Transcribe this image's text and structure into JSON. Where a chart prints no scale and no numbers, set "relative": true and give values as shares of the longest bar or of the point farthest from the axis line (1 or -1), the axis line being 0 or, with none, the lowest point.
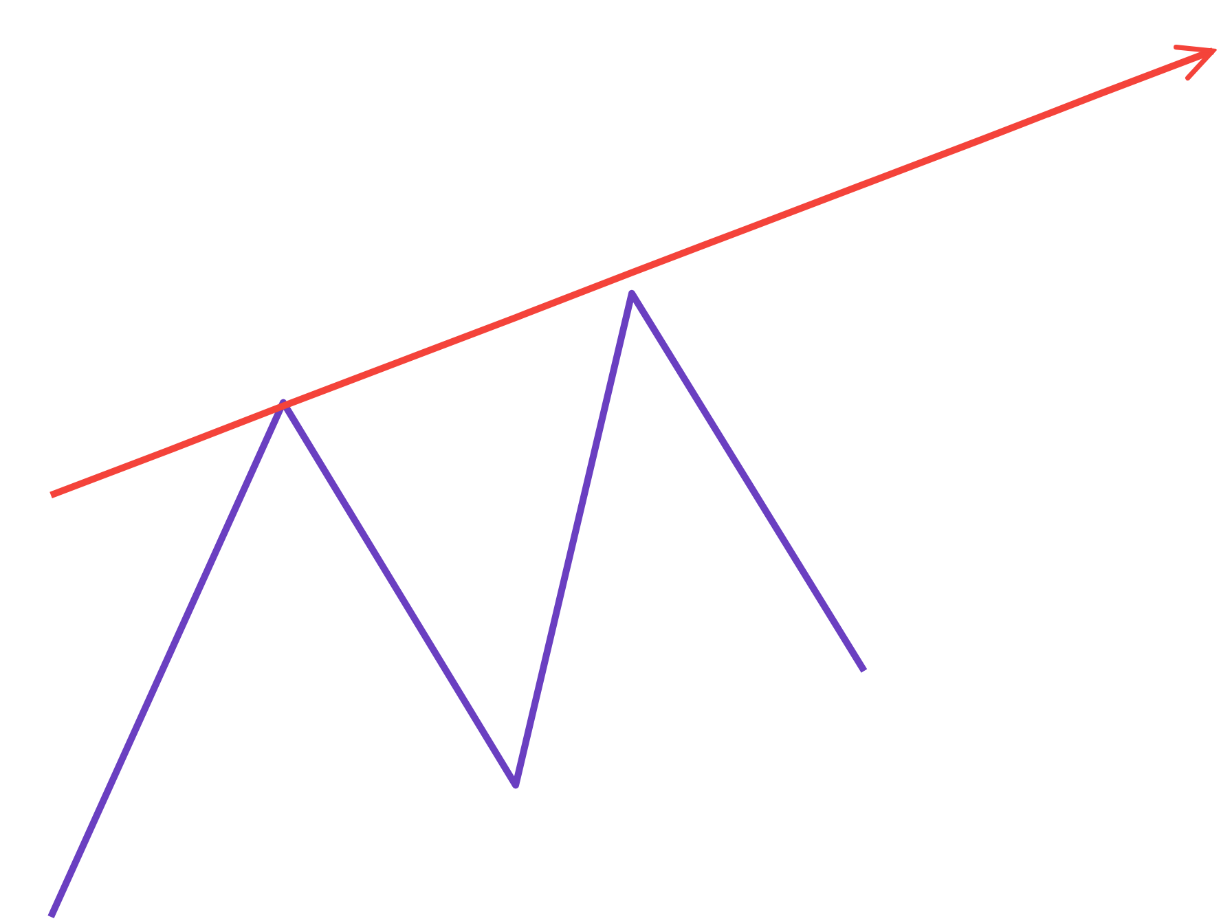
{
  "chart_data": {
    "type": "line",
    "relative": true,
    "line_style": "solid",
    "marker": "none",
    "categories": [
      null,
      null,
      null,
      null,
      null,
      null,
      null,
      null,
      null,
      null,
      null
    ],
    "series": [
      {
        "color": "#6a3fc1",
        "values": [
          0,
          0.297,
          0.594,
          0.373,
          0.152,
          0.72,
          0.502,
          0.284,
          null,
          null,
          null
        ]
      },
      {
        "color": "#f4433a",
        "values": [
          0.487,
          0.538,
          0.59,
          0.641,
          0.692,
          0.744,
          0.795,
          0.846,
          0.897,
          0.949,
          1
        ]
      }
    ]
  }
}
